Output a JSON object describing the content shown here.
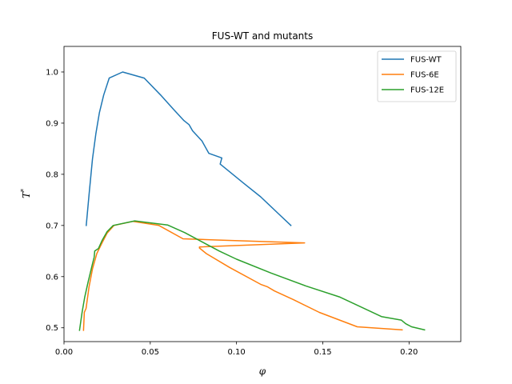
{
  "chart_data": {
    "type": "line",
    "title": "FUS-WT and mutants",
    "xlabel": "φ",
    "ylabel_main": "T",
    "ylabel_sup": "*",
    "xlim": [
      0.0,
      0.23
    ],
    "ylim": [
      0.473,
      1.05
    ],
    "xticks": [
      0.0,
      0.05,
      0.1,
      0.15,
      0.2
    ],
    "xtick_labels": [
      "0.00",
      "0.05",
      "0.10",
      "0.15",
      "0.20"
    ],
    "yticks": [
      0.5,
      0.6,
      0.7,
      0.8,
      0.9,
      1.0
    ],
    "ytick_labels": [
      "0.5",
      "0.6",
      "0.7",
      "0.8",
      "0.9",
      "1.0"
    ],
    "grid": false,
    "legend_position": "top-right",
    "series": [
      {
        "name": "FUS-WT",
        "color": "#1f77b4",
        "points": [
          [
            0.0129,
            0.7
          ],
          [
            0.0145,
            0.76
          ],
          [
            0.0165,
            0.83
          ],
          [
            0.0185,
            0.88
          ],
          [
            0.0205,
            0.92
          ],
          [
            0.023,
            0.955
          ],
          [
            0.0262,
            0.988
          ],
          [
            0.034,
            1.0
          ],
          [
            0.0465,
            0.988
          ],
          [
            0.056,
            0.955
          ],
          [
            0.064,
            0.925
          ],
          [
            0.0695,
            0.905
          ],
          [
            0.0725,
            0.897
          ],
          [
            0.0745,
            0.885
          ],
          [
            0.08,
            0.865
          ],
          [
            0.084,
            0.841
          ],
          [
            0.0915,
            0.832
          ],
          [
            0.0905,
            0.82
          ],
          [
            0.096,
            0.805
          ],
          [
            0.104,
            0.783
          ],
          [
            0.114,
            0.756
          ],
          [
            0.124,
            0.724
          ],
          [
            0.1315,
            0.7
          ]
        ]
      },
      {
        "name": "FUS-6E",
        "color": "#ff7f0e",
        "points": [
          [
            0.0113,
            0.495
          ],
          [
            0.0118,
            0.53
          ],
          [
            0.0128,
            0.538
          ],
          [
            0.0145,
            0.58
          ],
          [
            0.0165,
            0.615
          ],
          [
            0.019,
            0.645
          ],
          [
            0.0222,
            0.667
          ],
          [
            0.025,
            0.685
          ],
          [
            0.029,
            0.7
          ],
          [
            0.04,
            0.708
          ],
          [
            0.055,
            0.7
          ],
          [
            0.069,
            0.674
          ],
          [
            0.085,
            0.672
          ],
          [
            0.1395,
            0.666
          ],
          [
            0.0785,
            0.658
          ],
          [
            0.0785,
            0.656
          ],
          [
            0.0825,
            0.645
          ],
          [
            0.096,
            0.618
          ],
          [
            0.114,
            0.585
          ],
          [
            0.118,
            0.58
          ],
          [
            0.122,
            0.572
          ],
          [
            0.133,
            0.555
          ],
          [
            0.148,
            0.53
          ],
          [
            0.17,
            0.502
          ],
          [
            0.196,
            0.496
          ]
        ]
      },
      {
        "name": "FUS-12E",
        "color": "#2ca02c",
        "points": [
          [
            0.009,
            0.495
          ],
          [
            0.0105,
            0.53
          ],
          [
            0.012,
            0.56
          ],
          [
            0.014,
            0.59
          ],
          [
            0.0165,
            0.625
          ],
          [
            0.0175,
            0.638
          ],
          [
            0.0178,
            0.65
          ],
          [
            0.02,
            0.655
          ],
          [
            0.022,
            0.67
          ],
          [
            0.025,
            0.688
          ],
          [
            0.0285,
            0.7
          ],
          [
            0.041,
            0.709
          ],
          [
            0.06,
            0.701
          ],
          [
            0.07,
            0.686
          ],
          [
            0.08,
            0.668
          ],
          [
            0.09,
            0.65
          ],
          [
            0.1,
            0.634
          ],
          [
            0.12,
            0.607
          ],
          [
            0.14,
            0.582
          ],
          [
            0.16,
            0.56
          ],
          [
            0.184,
            0.522
          ],
          [
            0.1955,
            0.515
          ],
          [
            0.198,
            0.508
          ],
          [
            0.2015,
            0.502
          ],
          [
            0.209,
            0.496
          ]
        ]
      }
    ]
  }
}
